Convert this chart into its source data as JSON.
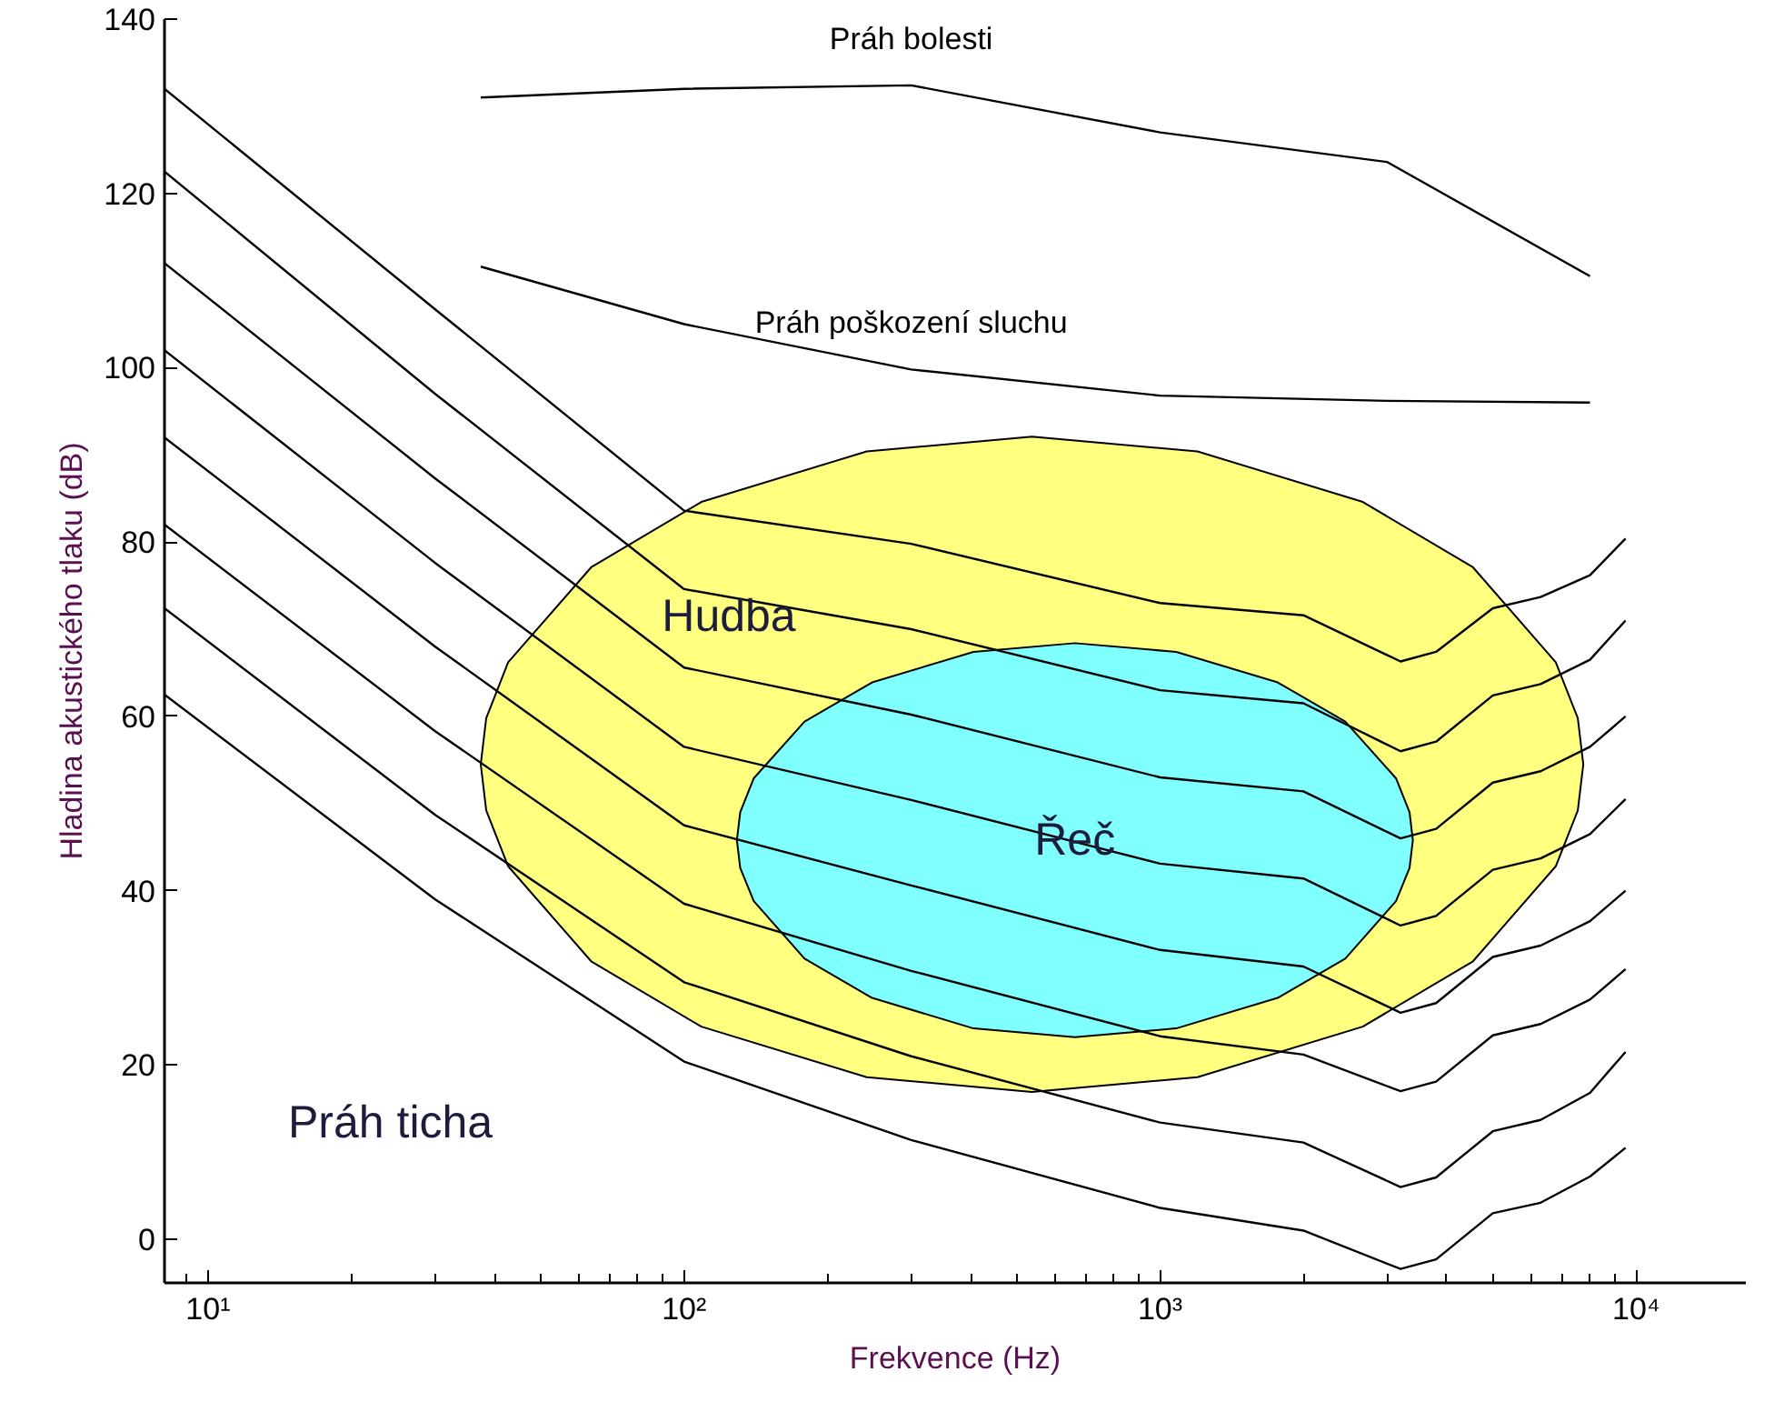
{
  "chart_data": {
    "type": "line",
    "xlabel": "Frekvence (Hz)",
    "ylabel": "Hladina akustického tlaku (dB)",
    "log": "x",
    "xlim": [
      8.1,
      17000
    ],
    "ylim": [
      -5,
      140
    ],
    "xticks": [
      {
        "value": 10,
        "label": "10¹"
      },
      {
        "value": 100,
        "label": "10²"
      },
      {
        "value": 1000,
        "label": "10³"
      },
      {
        "value": 10000,
        "label": "10⁴"
      }
    ],
    "yticks": [
      0,
      20,
      40,
      60,
      80,
      100,
      120,
      140
    ],
    "grid": false,
    "series": [
      {
        "type": "area",
        "name": "Hudba",
        "color": "#ffff80",
        "values": [
          54.5,
          59.8,
          66.2,
          77.1,
          84.6,
          90.4,
          92.1,
          90.4,
          84.6,
          77.1,
          66.2,
          59.8,
          54.5,
          49.2,
          42.8,
          31.9,
          24.4,
          18.6,
          16.9,
          18.6,
          24.4,
          31.9,
          42.8,
          49.2
        ],
        "x": [
          37.4,
          38.4,
          42.7,
          63.8,
          108.7,
          241.9,
          538,
          1198,
          2666,
          4543,
          6779,
          7542,
          7745,
          7542,
          6779,
          4543,
          2666,
          1198,
          538,
          241.9,
          108.7,
          63.8,
          42.7,
          38.4
        ]
      },
      {
        "type": "area",
        "name": "Řeč",
        "color": "#80ffff",
        "values": [
          45.8,
          49,
          52.9,
          59.4,
          63.9,
          67.4,
          68.4,
          67.4,
          63.9,
          59.4,
          52.9,
          49,
          45.8,
          42.6,
          38.8,
          32.2,
          27.7,
          24.2,
          23.2,
          24.2,
          27.7,
          32.2,
          38.8,
          42.6
        ],
        "x": [
          129.1,
          131.2,
          140.1,
          179.1,
          248.3,
          405.5,
          662.2,
          1081,
          1766,
          2449,
          3130,
          3342,
          3396,
          3342,
          3130,
          2449,
          1766,
          1081,
          662.2,
          405.5,
          248.3,
          179.1,
          140.1,
          131.2
        ]
      },
      {
        "name": "Práh bolesti",
        "color": "#000000",
        "x": [
          37.4,
          100,
          300,
          1000,
          3000,
          8000
        ],
        "values": [
          131,
          132,
          132.4,
          127,
          123.6,
          110.5
        ]
      },
      {
        "name": "Práh poškození sluchu",
        "color": "#000000",
        "x": [
          37.4,
          100,
          300,
          1000,
          3000,
          8000
        ],
        "values": [
          111.6,
          105,
          99.8,
          96.8,
          96.2,
          96
        ]
      },
      {
        "type": "line",
        "color": "#000000",
        "x": [
          8.1,
          30,
          100,
          300,
          1000,
          2000,
          3200,
          3800,
          5000,
          6300,
          8000,
          9500
        ],
        "values": [
          132,
          106.7,
          83.6,
          79.8,
          73,
          71.6,
          66.3,
          67.4,
          72.4,
          73.7,
          76.2,
          80.4
        ]
      },
      {
        "type": "line",
        "color": "#000000",
        "x": [
          8.1,
          30,
          100,
          300,
          1000,
          2000,
          3200,
          3800,
          5000,
          6300,
          8000,
          9500
        ],
        "values": [
          122.5,
          97,
          74.6,
          70,
          63,
          61.5,
          56,
          57.1,
          62.4,
          63.7,
          66.5,
          71
        ]
      },
      {
        "type": "line",
        "color": "#000000",
        "x": [
          8.1,
          30,
          100,
          300,
          1000,
          2000,
          3200,
          3800,
          5000,
          6300,
          8000,
          9500
        ],
        "values": [
          112,
          87.3,
          65.6,
          60.2,
          53,
          51.4,
          46,
          47.1,
          52.4,
          53.7,
          56.5,
          60
        ]
      },
      {
        "type": "line",
        "color": "#000000",
        "x": [
          8.1,
          30,
          100,
          300,
          1000,
          2000,
          3200,
          3800,
          5000,
          6300,
          8000,
          9500
        ],
        "values": [
          102,
          77.6,
          56.5,
          50.4,
          43.1,
          41.4,
          36,
          37.1,
          42.4,
          43.7,
          46.5,
          50.5
        ]
      },
      {
        "type": "line",
        "color": "#000000",
        "x": [
          8.1,
          30,
          100,
          300,
          1000,
          2000,
          3200,
          3800,
          5000,
          6300,
          8000,
          9500
        ],
        "values": [
          92,
          68,
          47.5,
          40.6,
          33.2,
          31.3,
          26,
          27.1,
          32.4,
          33.7,
          36.5,
          40
        ]
      },
      {
        "type": "line",
        "color": "#000000",
        "x": [
          8.1,
          30,
          100,
          300,
          1000,
          2000,
          3200,
          3800,
          5000,
          6300,
          8000,
          9500
        ],
        "values": [
          82,
          58.3,
          38.5,
          30.8,
          23.3,
          21.2,
          17,
          18.1,
          23.4,
          24.7,
          27.5,
          31
        ]
      },
      {
        "type": "line",
        "color": "#000000",
        "x": [
          8.1,
          30,
          100,
          300,
          1000,
          2000,
          3200,
          3800,
          5000,
          6300,
          8000,
          9500
        ],
        "values": [
          72.4,
          48.7,
          29.5,
          21,
          13.4,
          11.1,
          6,
          7.1,
          12.4,
          13.7,
          16.8,
          21.5
        ]
      },
      {
        "type": "line",
        "color": "#000000",
        "x": [
          8.1,
          30,
          100,
          300,
          1000,
          2000,
          3200,
          3800,
          5000,
          6300,
          8000,
          9500
        ],
        "values": [
          62.5,
          39,
          20.4,
          11.4,
          3.6,
          1,
          -3.4,
          -2.3,
          3,
          4.2,
          7.2,
          10.5
        ]
      }
    ],
    "annotations": [
      "Práh ticha"
    ]
  }
}
